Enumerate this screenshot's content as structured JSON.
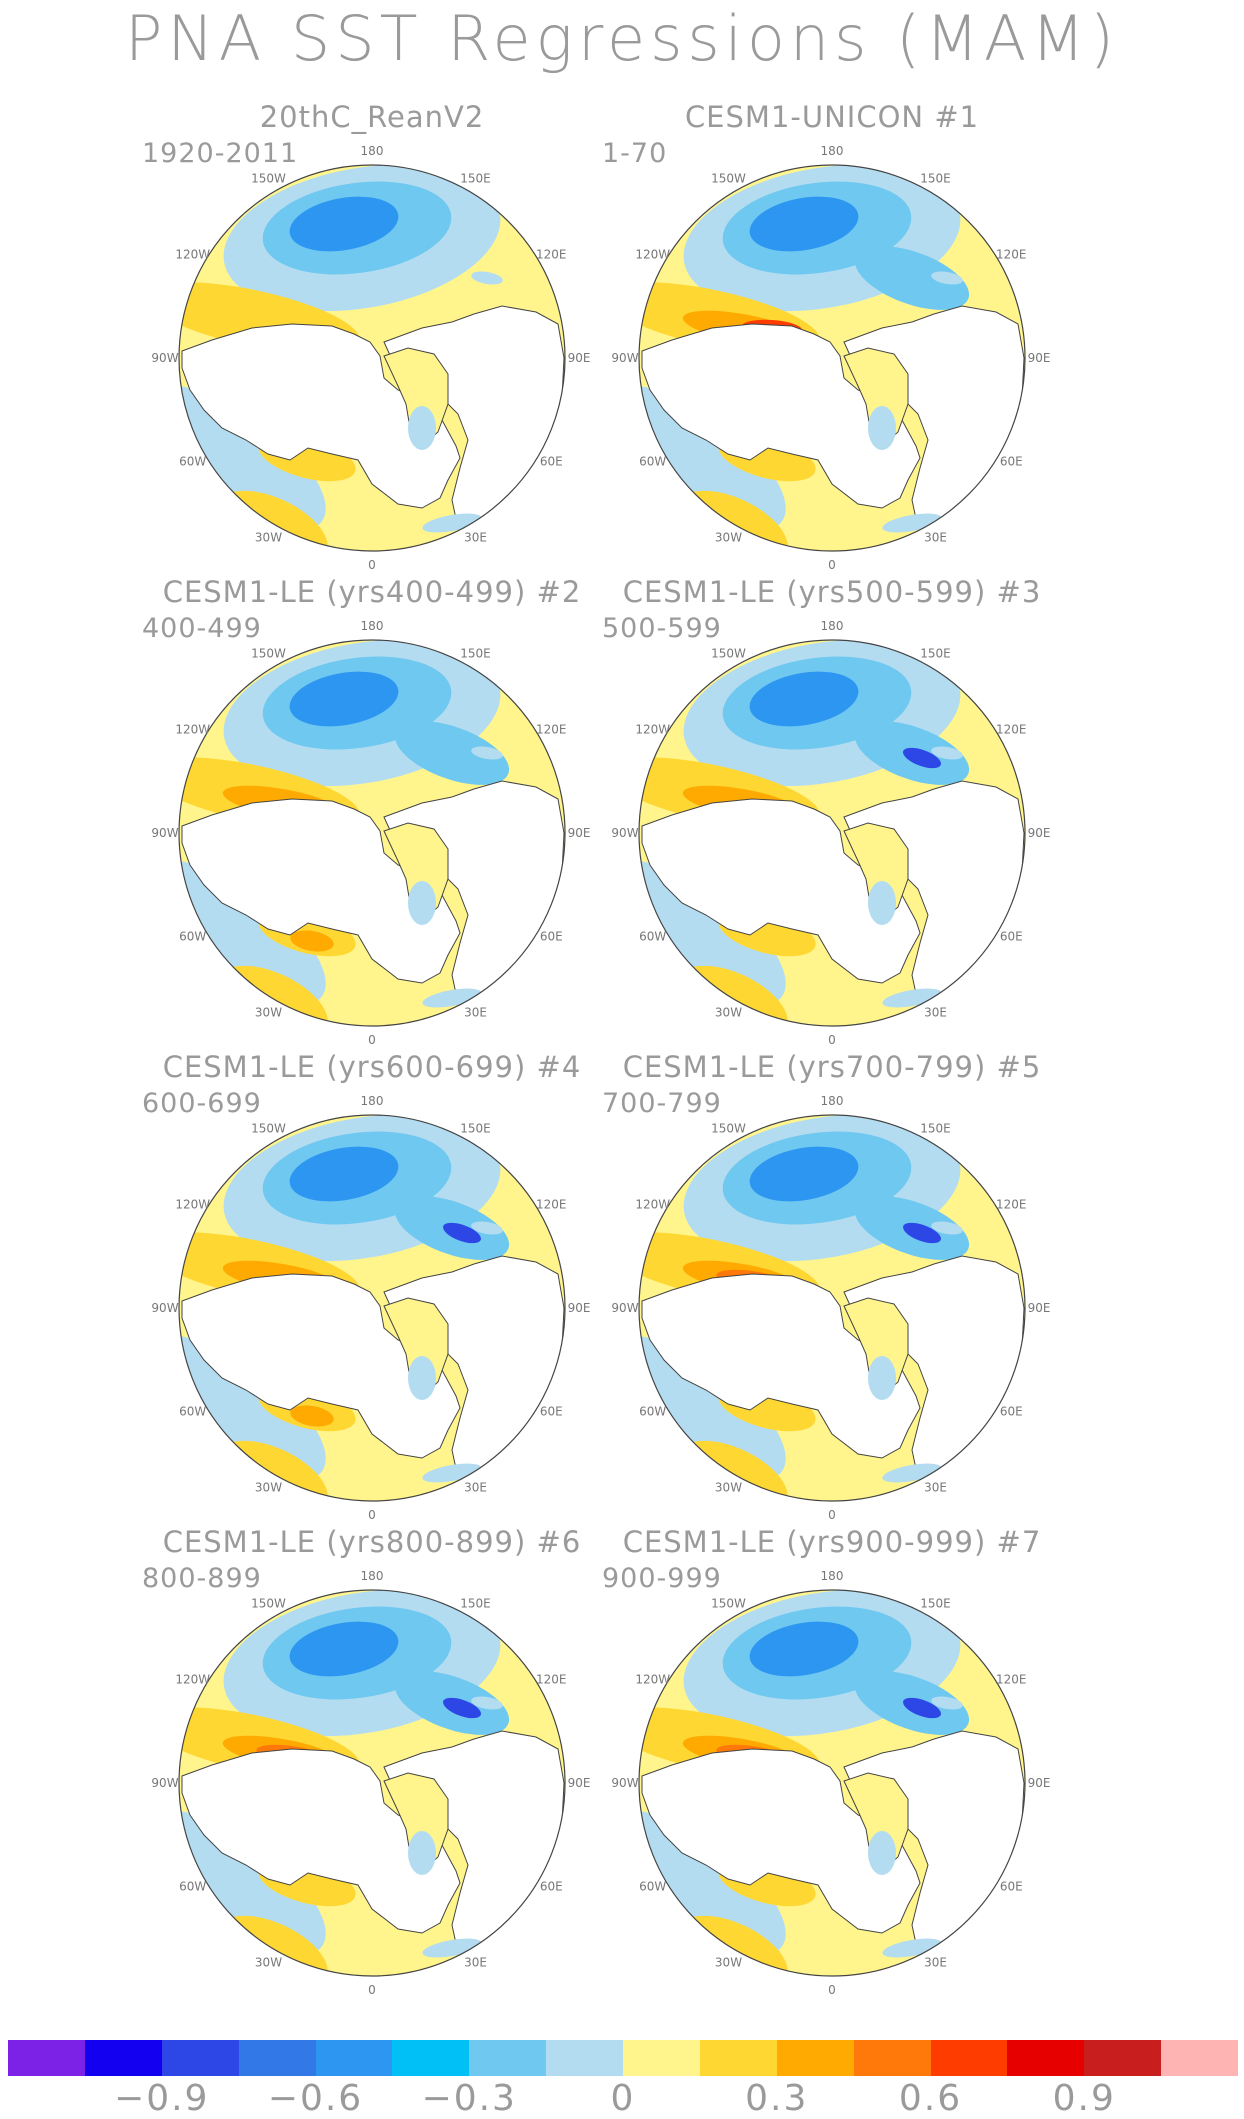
{
  "title": "PNA SST Regressions (MAM)",
  "panels": [
    {
      "title": "20thC_ReanV2",
      "period": "1920-2011",
      "variant": 0
    },
    {
      "title": "CESM1-UNICON       #1",
      "period": "1-70",
      "variant": 1
    },
    {
      "title": "CESM1-LE (yrs400-499) #2",
      "period": "400-499",
      "variant": 2
    },
    {
      "title": "CESM1-LE (yrs500-599) #3",
      "period": "500-599",
      "variant": 3
    },
    {
      "title": "CESM1-LE (yrs600-699) #4",
      "period": "600-699",
      "variant": 4
    },
    {
      "title": "CESM1-LE (yrs700-799) #5",
      "period": "700-799",
      "variant": 5
    },
    {
      "title": "CESM1-LE (yrs800-899) #6",
      "period": "800-899",
      "variant": 6
    },
    {
      "title": "CESM1-LE (yrs900-999) #7",
      "period": "900-999",
      "variant": 7
    }
  ],
  "longitude_labels": [
    "180",
    "150E",
    "120E",
    "90E",
    "60E",
    "30E",
    "0",
    "30W",
    "60W",
    "90W",
    "120W",
    "150W"
  ],
  "colorbar": {
    "colors": [
      "#7b22e6",
      "#1400f0",
      "#2d46e6",
      "#3278e6",
      "#2d96f0",
      "#00c0f5",
      "#6ec8f0",
      "#b4dcf0",
      "#fff58c",
      "#ffd732",
      "#ffaa00",
      "#ff780a",
      "#ff3c00",
      "#e60000",
      "#c81e1e",
      "#ffb4b4"
    ],
    "labels": [
      "−0.9",
      "−0.6",
      "−0.3",
      "0",
      "0.3",
      "0.6",
      "0.9"
    ]
  }
}
